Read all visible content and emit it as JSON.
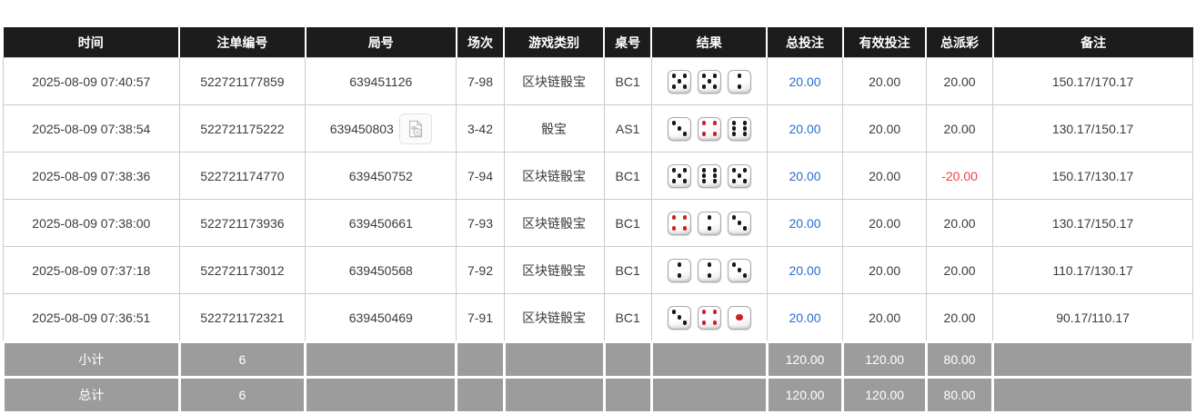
{
  "colors": {
    "header_bg": "#1c1c1c",
    "footer_bg": "#9c9c9c",
    "border": "#cccccc",
    "link_blue": "#2b6bd3",
    "negative_red": "#e94343",
    "die_pip_black": "#171717",
    "die_pip_red": "#c92323"
  },
  "icons": {
    "video_icon": "video-file-icon"
  },
  "table": {
    "columns": [
      {
        "key": "time",
        "label": "时间"
      },
      {
        "key": "order_no",
        "label": "注单编号"
      },
      {
        "key": "round_no",
        "label": "局号"
      },
      {
        "key": "session",
        "label": "场次"
      },
      {
        "key": "game_type",
        "label": "游戏类别"
      },
      {
        "key": "table_no",
        "label": "桌号"
      },
      {
        "key": "result",
        "label": "结果"
      },
      {
        "key": "total_bet",
        "label": "总投注"
      },
      {
        "key": "valid_bet",
        "label": "有效投注"
      },
      {
        "key": "total_payout",
        "label": "总派彩"
      },
      {
        "key": "remark",
        "label": "备注"
      }
    ],
    "rows": [
      {
        "time": "2025-08-09 07:40:57",
        "order_no": "522721177859",
        "round_no": "639451126",
        "has_video": false,
        "session": "7-98",
        "game_type": "区块链骰宝",
        "table_no": "BC1",
        "dice": [
          {
            "value": 5,
            "color": "black"
          },
          {
            "value": 5,
            "color": "black"
          },
          {
            "value": 2,
            "color": "black"
          }
        ],
        "total_bet": "20.00",
        "valid_bet": "20.00",
        "total_payout": "20.00",
        "payout_negative": false,
        "remark": "150.17/170.17"
      },
      {
        "time": "2025-08-09 07:38:54",
        "order_no": "522721175222",
        "round_no": "639450803",
        "has_video": true,
        "session": "3-42",
        "game_type": "骰宝",
        "table_no": "AS1",
        "dice": [
          {
            "value": 3,
            "color": "black"
          },
          {
            "value": 4,
            "color": "red"
          },
          {
            "value": 6,
            "color": "black"
          }
        ],
        "total_bet": "20.00",
        "valid_bet": "20.00",
        "total_payout": "20.00",
        "payout_negative": false,
        "remark": "130.17/150.17"
      },
      {
        "time": "2025-08-09 07:38:36",
        "order_no": "522721174770",
        "round_no": "639450752",
        "has_video": false,
        "session": "7-94",
        "game_type": "区块链骰宝",
        "table_no": "BC1",
        "dice": [
          {
            "value": 5,
            "color": "black"
          },
          {
            "value": 6,
            "color": "black"
          },
          {
            "value": 5,
            "color": "black"
          }
        ],
        "total_bet": "20.00",
        "valid_bet": "20.00",
        "total_payout": "-20.00",
        "payout_negative": true,
        "remark": "150.17/130.17"
      },
      {
        "time": "2025-08-09 07:38:00",
        "order_no": "522721173936",
        "round_no": "639450661",
        "has_video": false,
        "session": "7-93",
        "game_type": "区块链骰宝",
        "table_no": "BC1",
        "dice": [
          {
            "value": 4,
            "color": "red"
          },
          {
            "value": 2,
            "color": "black"
          },
          {
            "value": 3,
            "color": "black"
          }
        ],
        "total_bet": "20.00",
        "valid_bet": "20.00",
        "total_payout": "20.00",
        "payout_negative": false,
        "remark": "130.17/150.17"
      },
      {
        "time": "2025-08-09 07:37:18",
        "order_no": "522721173012",
        "round_no": "639450568",
        "has_video": false,
        "session": "7-92",
        "game_type": "区块链骰宝",
        "table_no": "BC1",
        "dice": [
          {
            "value": 2,
            "color": "black"
          },
          {
            "value": 2,
            "color": "black"
          },
          {
            "value": 3,
            "color": "black"
          }
        ],
        "total_bet": "20.00",
        "valid_bet": "20.00",
        "total_payout": "20.00",
        "payout_negative": false,
        "remark": "110.17/130.17"
      },
      {
        "time": "2025-08-09 07:36:51",
        "order_no": "522721172321",
        "round_no": "639450469",
        "has_video": false,
        "session": "7-91",
        "game_type": "区块链骰宝",
        "table_no": "BC1",
        "dice": [
          {
            "value": 3,
            "color": "black"
          },
          {
            "value": 4,
            "color": "red"
          },
          {
            "value": 1,
            "color": "red"
          }
        ],
        "total_bet": "20.00",
        "valid_bet": "20.00",
        "total_payout": "20.00",
        "payout_negative": false,
        "remark": "90.17/110.17"
      }
    ],
    "footer_rows": [
      {
        "label": "小计",
        "count": "6",
        "total_bet": "120.00",
        "valid_bet": "120.00",
        "total_payout": "80.00"
      },
      {
        "label": "总计",
        "count": "6",
        "total_bet": "120.00",
        "valid_bet": "120.00",
        "total_payout": "80.00"
      }
    ]
  }
}
